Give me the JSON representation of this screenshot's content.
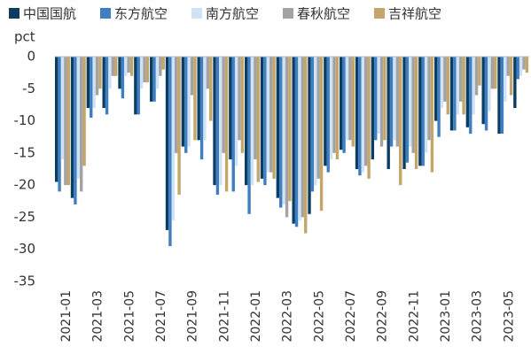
{
  "chart_data": {
    "type": "bar",
    "ylabel": "pct",
    "categories": [
      "2021-01",
      null,
      "2021-03",
      null,
      "2021-05",
      null,
      "2021-07",
      null,
      "2021-09",
      null,
      "2021-11",
      null,
      "2022-01",
      null,
      "2022-03",
      null,
      "2022-05",
      null,
      "2022-07",
      null,
      "2022-09",
      null,
      "2022-11",
      null,
      "2023-01",
      null,
      "2023-03",
      null,
      "2023-05",
      null
    ],
    "series": [
      {
        "name": "中国国航",
        "color": "#0b3d63",
        "values": [
          -19.5,
          -22,
          -8,
          -8,
          -5,
          -9,
          -7,
          -27,
          -14,
          -13,
          -20,
          -16,
          -20,
          -19,
          -22,
          -26,
          -24.5,
          -17,
          -14.5,
          -17.5,
          -16,
          -17.5,
          -17.5,
          -17,
          -10,
          -11.5,
          -11,
          -10.5,
          -12,
          -8
        ]
      },
      {
        "name": "东方航空",
        "color": "#3f7ec1",
        "values": [
          -21,
          -23,
          -9.5,
          -9,
          -6.5,
          -9,
          -7,
          -29.5,
          -15,
          -16,
          -21.5,
          -21,
          -24.5,
          -20,
          -23.5,
          -26.5,
          -21,
          -18,
          -15,
          -18.5,
          -13,
          -14,
          -16.5,
          -17,
          -12.5,
          -11.5,
          -12,
          -11.5,
          -12,
          -3.5
        ]
      },
      {
        "name": "南方航空",
        "color": "#cfe3f5",
        "values": [
          -16,
          -19,
          -8,
          -5,
          -3,
          -5,
          -5,
          -25.5,
          -14,
          -13,
          -20,
          -17,
          -20,
          -18,
          -23,
          -25.5,
          -20,
          -16,
          -13,
          -18,
          -12,
          -13,
          -14,
          -15,
          -8,
          -9,
          -9,
          -8.5,
          -7,
          -3
        ]
      },
      {
        "name": "春秋航空",
        "color": "#a3a3a3",
        "values": [
          -20,
          -21,
          -6,
          -3,
          -2.5,
          -4,
          -3,
          -15,
          -6,
          -5,
          -15,
          -13,
          -16,
          -18,
          -25,
          -25,
          -19,
          -15,
          -13,
          -17,
          -14,
          -14,
          -15,
          -13,
          -7,
          -7,
          -6,
          -5,
          -3,
          -2
        ]
      },
      {
        "name": "吉祥航空",
        "color": "#c4a56a",
        "values": [
          -20,
          -17,
          -5,
          -3,
          -3,
          -4,
          -2,
          -21.5,
          -13,
          -10,
          -21,
          -15,
          -19.5,
          -19,
          -22.5,
          -27.5,
          -24,
          -16,
          -14,
          -19,
          -13,
          -20,
          -17.5,
          -18,
          -9,
          -9,
          -4.5,
          -5,
          -6,
          -2.5
        ]
      }
    ],
    "ylim": [
      -35,
      0
    ],
    "yticks": [
      0,
      -5,
      -10,
      -15,
      -20,
      -25,
      -30,
      -35
    ],
    "legend": "top"
  }
}
